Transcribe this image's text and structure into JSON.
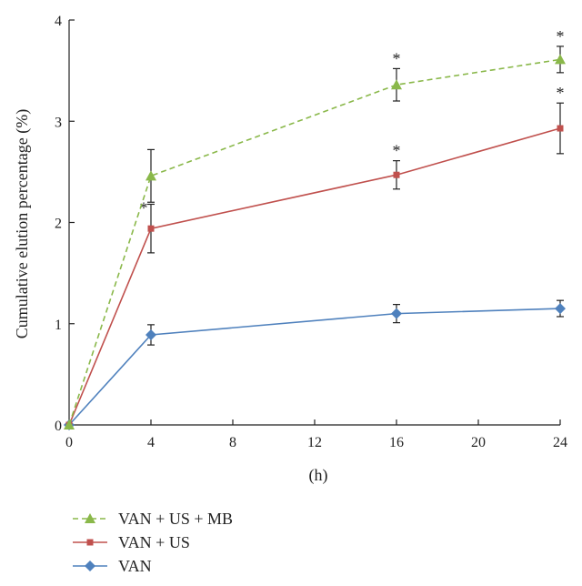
{
  "chart_data": {
    "type": "line",
    "title": "",
    "xlabel": "(h)",
    "ylabel": "Cumulative elution percentage (%)",
    "x": [
      0,
      4,
      16,
      24
    ],
    "xlim": [
      0,
      24
    ],
    "ylim": [
      0,
      4
    ],
    "x_ticks": [
      0,
      4,
      8,
      12,
      16,
      20,
      24
    ],
    "y_ticks": [
      0,
      1,
      2,
      3,
      4
    ],
    "legend_position": "bottom-left",
    "series": [
      {
        "name": "VAN + US + MB",
        "values": [
          0,
          2.46,
          3.36,
          3.61
        ],
        "errors": [
          0,
          0.26,
          0.16,
          0.13
        ],
        "color": "#8ab84a",
        "line_style": "dashed",
        "marker": "triangle",
        "significance": [
          "",
          "",
          "*",
          "*"
        ]
      },
      {
        "name": "VAN + US",
        "values": [
          0,
          1.94,
          2.47,
          2.93
        ],
        "errors": [
          0,
          0.24,
          0.14,
          0.25
        ],
        "color": "#c0504d",
        "line_style": "solid",
        "marker": "square",
        "significance": [
          "",
          "*",
          "*",
          "*"
        ]
      },
      {
        "name": "VAN",
        "values": [
          0,
          0.89,
          1.1,
          1.15
        ],
        "errors": [
          0,
          0.1,
          0.09,
          0.08
        ],
        "color": "#4f81bd",
        "line_style": "solid",
        "marker": "diamond",
        "significance": [
          "",
          "",
          "",
          ""
        ]
      }
    ]
  }
}
